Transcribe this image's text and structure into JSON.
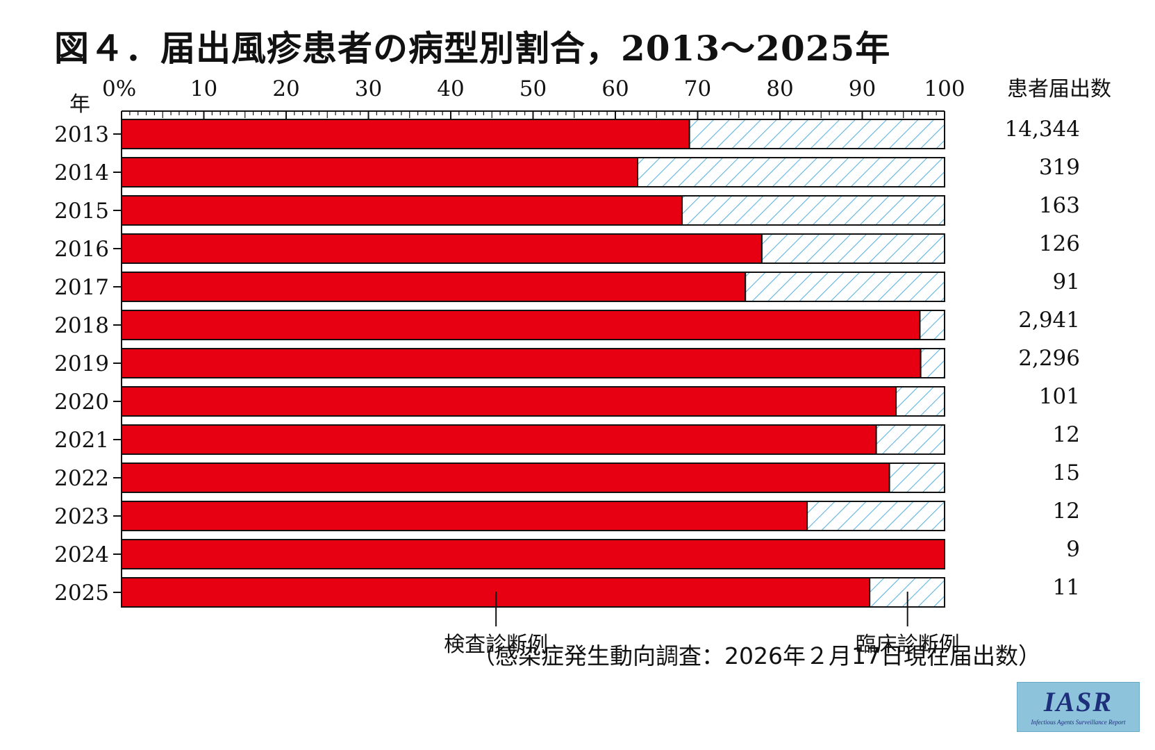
{
  "chart_data": {
    "type": "bar",
    "orientation": "horizontal",
    "stacked": true,
    "title": "図４．届出風疹患者の病型別割合，2013～2025年",
    "y_axis_label": "年",
    "right_column_label": "患者届出数",
    "x_tick_labels": [
      "0%",
      "10",
      "20",
      "30",
      "40",
      "50",
      "60",
      "70",
      "80",
      "90",
      "100"
    ],
    "xlim": [
      0,
      100
    ],
    "categories": [
      "2013",
      "2014",
      "2015",
      "2016",
      "2017",
      "2018",
      "2019",
      "2020",
      "2021",
      "2022",
      "2023",
      "2024",
      "2025"
    ],
    "series": [
      {
        "name": "検査診断例",
        "color": "#e60012",
        "values": [
          69.0,
          62.7,
          68.1,
          77.8,
          75.8,
          97.0,
          97.1,
          94.1,
          91.7,
          93.3,
          83.3,
          100.0,
          90.9
        ]
      },
      {
        "name": "臨床診断例",
        "color": "#86c9e8",
        "pattern": "diagonal-hatch",
        "values": [
          31.0,
          37.3,
          31.9,
          22.2,
          24.2,
          3.0,
          2.9,
          5.9,
          8.3,
          6.7,
          16.7,
          0.0,
          9.1
        ]
      }
    ],
    "counts": [
      "14,344",
      "319",
      "163",
      "126",
      "91",
      "2,941",
      "2,296",
      "101",
      "12",
      "15",
      "12",
      "9",
      "11"
    ],
    "legend_placement": "bottom",
    "grid": false
  },
  "source_note": "（感染症発生動向調査：2026年２月17日現在届出数）",
  "logo": {
    "text": "IASR",
    "subtitle": "Infectious Agents Surveillance Report",
    "color": "#8ec3dc"
  }
}
